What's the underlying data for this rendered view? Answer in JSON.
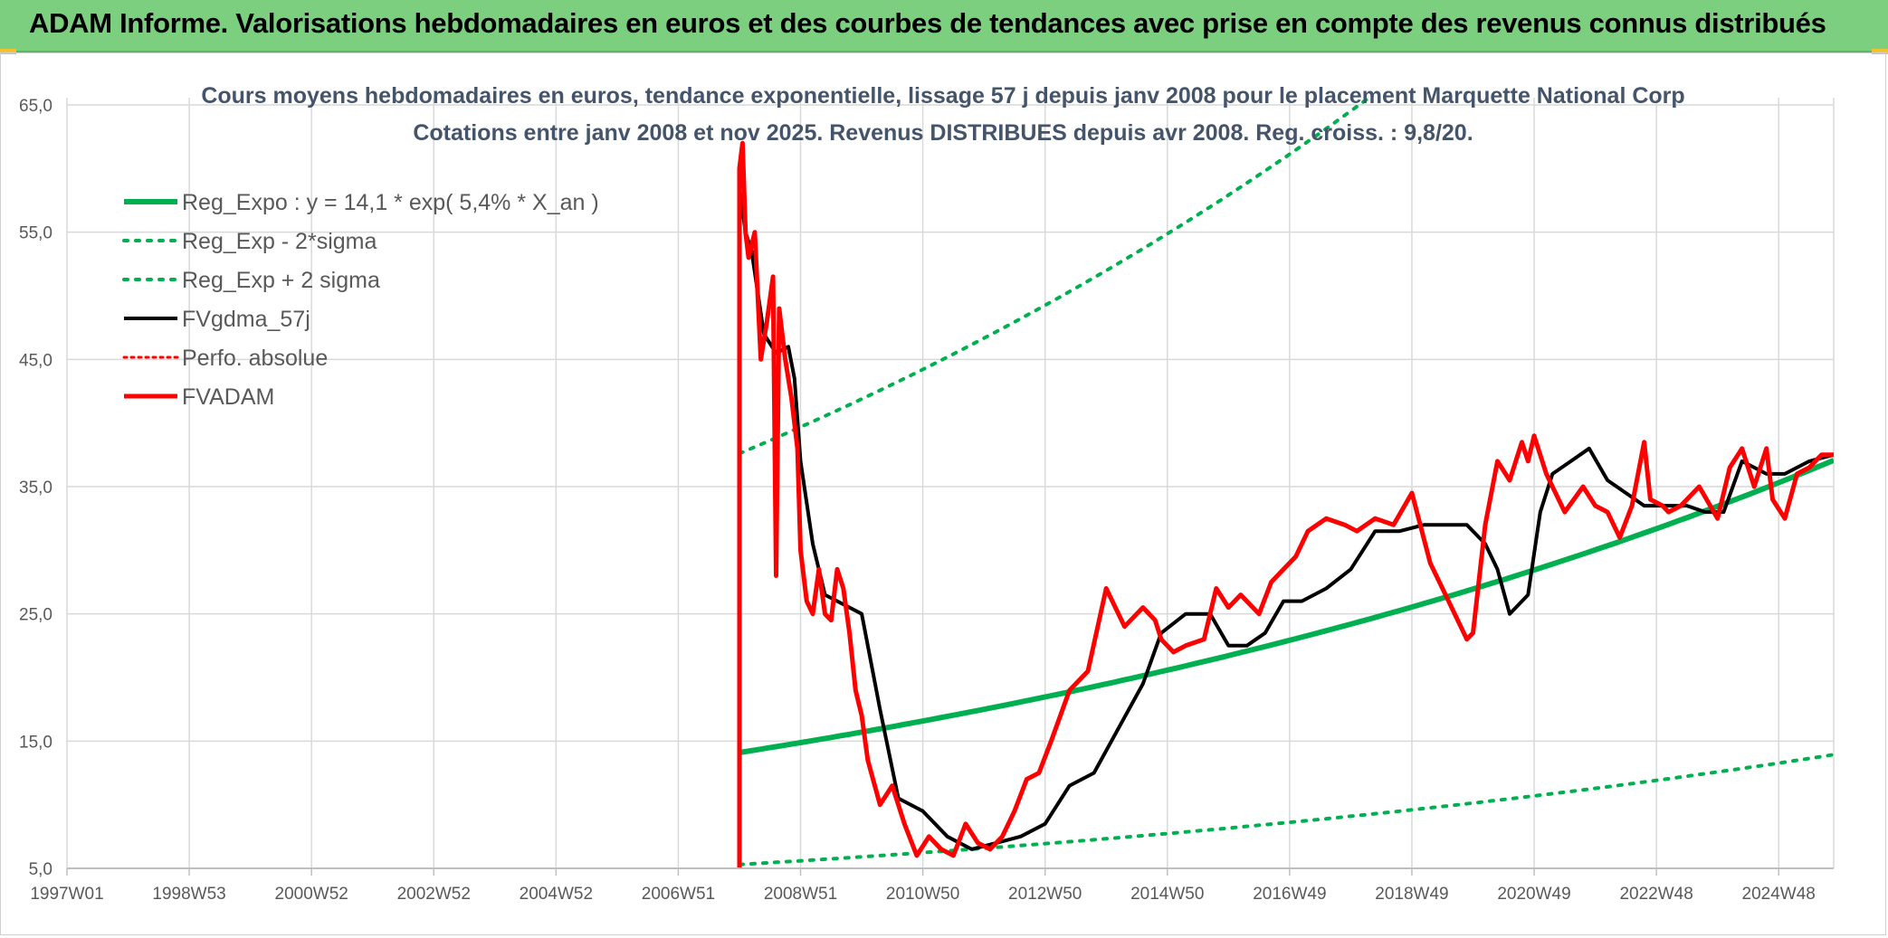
{
  "banner": {
    "title": "ADAM Informe. Valorisations hebdomadaires en euros et des courbes de tendances avec prise en compte des revenus connus distribués"
  },
  "chart_data": {
    "type": "line",
    "title": "Cours moyens hebdomadaires en euros, tendance exponentielle, lissage 57 j depuis janv 2008 pour le placement Marquette National Corp",
    "subtitle": "Cotations entre janv 2008 et nov 2025. Revenus DISTRIBUES depuis avr 2008. Reg. croiss. : 9,8/20.",
    "xlabel": "",
    "ylabel": "",
    "x_axis": {
      "min": 1997.0,
      "max": 2025.9,
      "tick_values": [
        1997.0,
        1999.0,
        2001.0,
        2003.0,
        2005.0,
        2007.0,
        2009.0,
        2011.0,
        2013.0,
        2015.0,
        2017.0,
        2019.0,
        2021.0,
        2023.0,
        2025.0
      ]
    },
    "x_tick_labels": [
      "1997W01",
      "1998W53",
      "2000W52",
      "2002W52",
      "2004W52",
      "2006W51",
      "2008W51",
      "2010W50",
      "2012W50",
      "2014W50",
      "2016W49",
      "2018W49",
      "2020W49",
      "2022W48",
      "2024W48"
    ],
    "ylim": [
      5,
      65
    ],
    "y_ticks": [
      5,
      15,
      25,
      35,
      45,
      55,
      65
    ],
    "y_tick_labels": [
      "5,0",
      "15,0",
      "25,0",
      "35,0",
      "45,0",
      "55,0",
      "65,0"
    ],
    "grid": true,
    "legend_position": "top-left",
    "series": [
      {
        "name": "Reg_Expo : y = 14,1 * exp( 5,4% *  X_an )",
        "style": "solid",
        "color": "#00b050",
        "width": 6,
        "model": {
          "a": 14.1,
          "b": 0.054,
          "x0": 2008.0
        },
        "x": [
          2008.0,
          2025.9
        ]
      },
      {
        "name": "Reg_Exp - 2*sigma",
        "style": "dotted",
        "color": "#00b050",
        "width": 4,
        "model": {
          "a": 5.3,
          "b": 0.054,
          "x0": 2008.0
        },
        "x": [
          2008.0,
          2025.9
        ]
      },
      {
        "name": "Reg_Exp + 2 sigma",
        "style": "dotted",
        "color": "#00b050",
        "width": 4,
        "model": {
          "a": 37.6,
          "b": 0.054,
          "x0": 2008.0
        },
        "x": [
          2008.0,
          2025.9
        ]
      },
      {
        "name": "FVgdma_57j",
        "style": "solid",
        "color": "#000000",
        "width": 4,
        "x": [
          2008.0,
          2008.1,
          2008.2,
          2008.4,
          2008.6,
          2008.8,
          2008.9,
          2009.0,
          2009.2,
          2009.4,
          2009.6,
          2009.8,
          2010.0,
          2010.3,
          2010.6,
          2011.0,
          2011.4,
          2011.8,
          2012.2,
          2012.6,
          2013.0,
          2013.4,
          2013.8,
          2014.2,
          2014.6,
          2014.9,
          2015.3,
          2015.7,
          2016.0,
          2016.3,
          2016.6,
          2016.9,
          2017.2,
          2017.6,
          2018.0,
          2018.4,
          2018.8,
          2019.2,
          2019.6,
          2019.9,
          2020.2,
          2020.4,
          2020.6,
          2020.9,
          2021.1,
          2021.3,
          2021.6,
          2021.9,
          2022.2,
          2022.5,
          2022.8,
          2023.1,
          2023.5,
          2023.8,
          2024.1,
          2024.4,
          2024.8,
          2025.1,
          2025.5,
          2025.9
        ],
        "y": [
          58.5,
          55.0,
          53.5,
          47.0,
          45.5,
          46.0,
          43.5,
          37.0,
          30.5,
          26.5,
          26.0,
          25.5,
          25.0,
          17.5,
          10.5,
          9.5,
          7.5,
          6.5,
          7.0,
          7.5,
          8.5,
          11.5,
          12.5,
          16.0,
          19.5,
          23.5,
          25.0,
          25.0,
          22.5,
          22.5,
          23.5,
          26.0,
          26.0,
          27.0,
          28.5,
          31.5,
          31.5,
          32.0,
          32.0,
          32.0,
          30.5,
          28.5,
          25.0,
          26.5,
          33.0,
          36.0,
          37.0,
          38.0,
          35.5,
          34.5,
          33.5,
          33.5,
          33.5,
          33.0,
          33.0,
          37.0,
          36.0,
          36.0,
          37.0,
          37.5
        ]
      },
      {
        "name": "Perfo. absolue",
        "style": "dotted",
        "color": "#ff0000",
        "width": 3,
        "x": [
          2008.0
        ],
        "y": [
          5.0
        ]
      },
      {
        "name": "FVADAM",
        "style": "solid",
        "color": "#ff0000",
        "width": 5,
        "x": [
          2008.0,
          2008.0,
          2008.05,
          2008.1,
          2008.15,
          2008.25,
          2008.35,
          2008.45,
          2008.55,
          2008.6,
          2008.65,
          2008.75,
          2008.85,
          2008.95,
          2009.0,
          2009.1,
          2009.2,
          2009.3,
          2009.4,
          2009.5,
          2009.6,
          2009.7,
          2009.8,
          2009.9,
          2010.0,
          2010.1,
          2010.3,
          2010.5,
          2010.7,
          2010.9,
          2011.1,
          2011.3,
          2011.5,
          2011.7,
          2011.9,
          2012.1,
          2012.3,
          2012.5,
          2012.7,
          2012.9,
          2013.1,
          2013.4,
          2013.7,
          2014.0,
          2014.3,
          2014.6,
          2014.8,
          2014.9,
          2015.1,
          2015.3,
          2015.6,
          2015.8,
          2016.0,
          2016.2,
          2016.5,
          2016.7,
          2016.9,
          2017.1,
          2017.3,
          2017.6,
          2017.9,
          2018.1,
          2018.4,
          2018.7,
          2019.0,
          2019.3,
          2019.6,
          2019.9,
          2020.0,
          2020.2,
          2020.4,
          2020.6,
          2020.8,
          2020.9,
          2021.0,
          2021.2,
          2021.5,
          2021.8,
          2022.0,
          2022.2,
          2022.4,
          2022.6,
          2022.8,
          2022.9,
          2023.1,
          2023.2,
          2023.4,
          2023.7,
          2024.0,
          2024.2,
          2024.4,
          2024.6,
          2024.8,
          2024.9,
          2025.1,
          2025.3,
          2025.5,
          2025.7,
          2025.9
        ],
        "y": [
          5.0,
          60.0,
          62.0,
          55.0,
          53.0,
          55.0,
          45.0,
          48.0,
          51.5,
          28.0,
          49.0,
          45.0,
          42.0,
          38.0,
          30.0,
          26.0,
          25.0,
          28.5,
          25.0,
          24.5,
          28.5,
          27.0,
          23.5,
          19.0,
          17.0,
          13.5,
          10.0,
          11.5,
          8.5,
          6.0,
          7.5,
          6.5,
          6.0,
          8.5,
          7.0,
          6.5,
          7.5,
          9.5,
          12.0,
          12.5,
          15.0,
          19.0,
          20.5,
          27.0,
          24.0,
          25.5,
          24.5,
          23.0,
          22.0,
          22.5,
          23.0,
          27.0,
          25.5,
          26.5,
          25.0,
          27.5,
          28.5,
          29.5,
          31.5,
          32.5,
          32.0,
          31.5,
          32.5,
          32.0,
          34.5,
          29.0,
          26.0,
          23.0,
          23.5,
          32.0,
          37.0,
          35.5,
          38.5,
          37.0,
          39.0,
          36.0,
          33.0,
          35.0,
          33.5,
          33.0,
          31.0,
          33.5,
          38.5,
          34.0,
          33.5,
          33.0,
          33.5,
          35.0,
          32.5,
          36.5,
          38.0,
          35.0,
          38.0,
          34.0,
          32.5,
          36.0,
          36.5,
          37.5,
          37.5
        ]
      }
    ]
  }
}
